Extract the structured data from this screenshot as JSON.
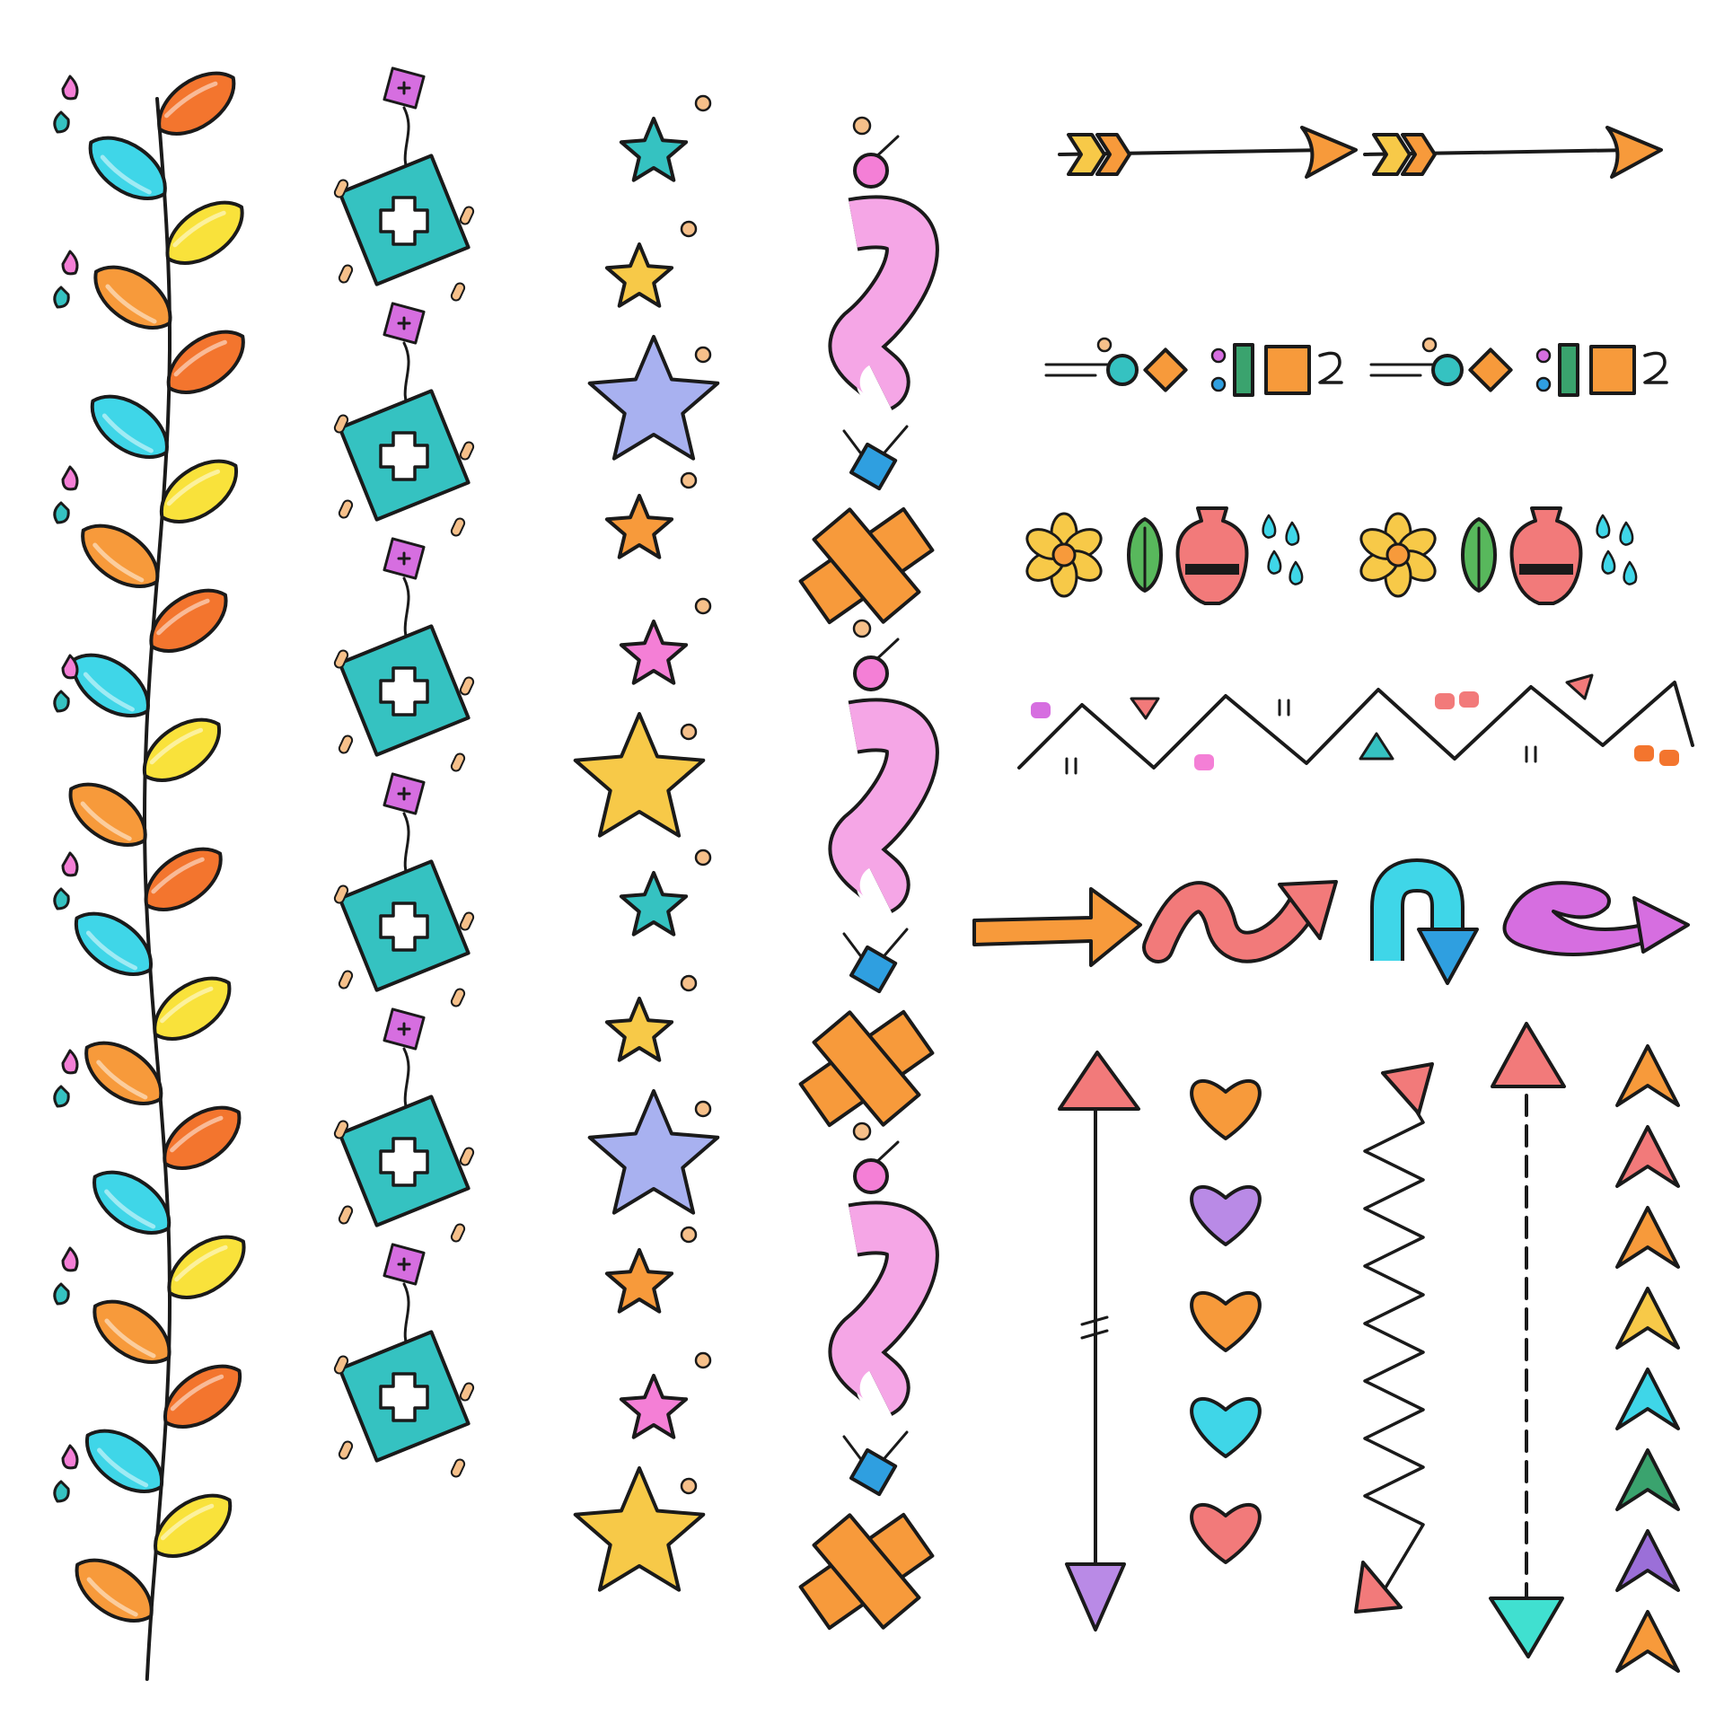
{
  "colors": {
    "outline": "#1a1a1a",
    "orange": "#f79a3b",
    "deep_orange": "#f3752e",
    "yellow": "#f9e23b",
    "gold": "#f7c948",
    "cyan": "#3fd6e8",
    "teal": "#35c2c1",
    "pink": "#f47fd6",
    "light_pink": "#f5a6e6",
    "magenta": "#d66ee0",
    "lavender": "#a8b1f0",
    "coral": "#f27a7a",
    "blue": "#2f9fe0",
    "green": "#58b85c",
    "purple": "#9b6fd8",
    "sea_green": "#3aa36e"
  },
  "decorations": {
    "vine_border": {
      "icon": "leaf-vine-icon",
      "leaf_count": 24
    },
    "diamond_cross_border": {
      "icon": "diamond-cross-icon",
      "count": 6
    },
    "star_border": {
      "icon": "star-icon",
      "count": 12
    },
    "squiggle_border": {
      "icon": "squiggle-icon",
      "count": 3
    },
    "horizontal_arrows": {
      "icon": "feathered-arrow-icon",
      "count": 2
    },
    "geometric_divider": {
      "icon": "geometric-divider-icon",
      "repeats": 2
    },
    "flower_row": {
      "icons": [
        "flower-icon",
        "leaf-icon",
        "vase-icon",
        "droplets-icon"
      ],
      "repeats": 2
    },
    "zigzag_mountains": {
      "icon": "zigzag-icon"
    },
    "brush_arrows": {
      "icons": [
        "straight-arrow-icon",
        "wavy-arrow-icon",
        "u-turn-arrow-icon",
        "loop-arrow-icon"
      ]
    },
    "vertical_double_arrow": {
      "icon": "double-arrow-icon"
    },
    "hearts": {
      "icon": "heart-icon",
      "count": 5
    },
    "zigzag_arrow": {
      "icon": "zigzag-arrow-icon"
    },
    "dashed_arrow": {
      "icon": "dashed-double-arrow-icon"
    },
    "chevrons": {
      "icon": "chevron-up-icon",
      "count": 8
    }
  }
}
